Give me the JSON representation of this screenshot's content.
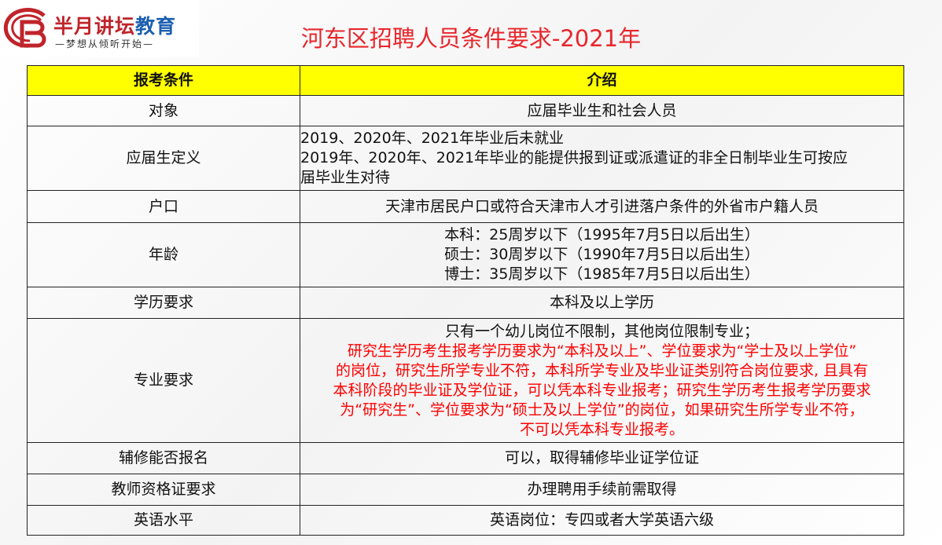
{
  "logo": {
    "name_red": "半月讲坛",
    "name_blue": "教育",
    "slogan": "—梦想从倾听开始—"
  },
  "title": "河东区招聘人员条件要求-2021年",
  "table": {
    "headers": [
      "报考条件",
      "介绍"
    ],
    "rows": [
      {
        "key": "对象",
        "lines": [
          "应届毕业生和社会人员"
        ]
      },
      {
        "key": "应届生定义",
        "lines": [
          "2019、2020年、2021年毕业后未就业",
          "2019年、2020年、2021年毕业的能提供报到证或派遣证的非全日制毕业生可按应",
          "届毕业生对待"
        ]
      },
      {
        "key": "户口",
        "lines": [
          "天津市居民户口或符合天津市人才引进落户条件的外省市户籍人员"
        ]
      },
      {
        "key": "年龄",
        "lines": [
          "本科：25周岁以下（1995年7月5日以后出生）",
          "硕士：30周岁以下（1990年7月5日以后出生）",
          "博士：35周岁以下（1985年7月5日以后出生）"
        ]
      },
      {
        "key": "学历要求",
        "lines": [
          "本科及以上学历"
        ]
      },
      {
        "key": "专业要求",
        "lines": [
          "只有一个幼儿岗位不限制，其他岗位限制专业；"
        ],
        "red_lines": [
          "研究生学历考生报考学历要求为“本科及以上”、学位要求为“学士及以上学位”",
          "的岗位，研究生所学专业不符，本科所学专业及毕业证类别符合岗位要求, 且具有",
          "本科阶段的毕业证及学位证，可以凭本科专业报考；研究生学历考生报考学历要求",
          "为“研究生”、学位要求为“硕士及以上学位”的岗位，如果研究生所学专业不符，",
          "不可以凭本科专业报考。"
        ]
      },
      {
        "key": "辅修能否报名",
        "lines": [
          "可以，取得辅修毕业证学位证"
        ]
      },
      {
        "key": "教师资格证要求",
        "lines": [
          "办理聘用手续前需取得"
        ]
      },
      {
        "key": "英语水平",
        "lines": [
          "英语岗位：专四或者大学英语六级"
        ]
      }
    ]
  },
  "colors": {
    "title": "#e8262b",
    "header_bg": "#ffff00",
    "highlight": "#ff0000"
  }
}
